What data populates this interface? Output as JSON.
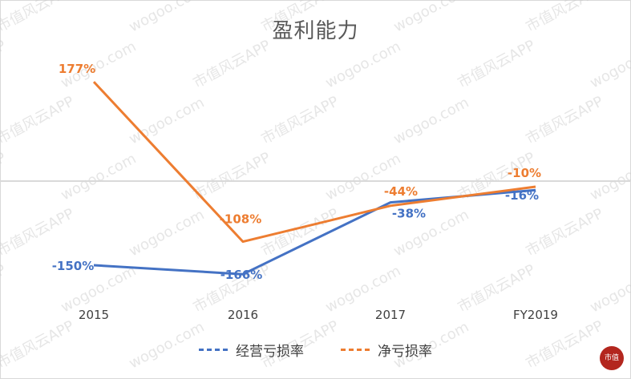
{
  "colors": {
    "operating": "#4472C4",
    "net": "#ED7D31",
    "zero_line": "#d9d9d9"
  },
  "chart_data": {
    "type": "line",
    "title": "盈利能力",
    "categories": [
      "2015",
      "2016",
      "2017",
      "FY2019"
    ],
    "series": [
      {
        "name": "经营亏损率",
        "values": [
          -150,
          -166,
          -38,
          -16
        ],
        "labels": [
          "-150%",
          "-166%",
          "-38%",
          "-16%"
        ]
      },
      {
        "name": "净亏损率",
        "values": [
          177,
          -108,
          -44,
          -10
        ],
        "labels": [
          "177%",
          "-108%",
          "-44%",
          "-10%"
        ]
      }
    ],
    "ylim": [
      -220,
      260
    ],
    "grid": false,
    "legend_position": "bottom"
  },
  "watermark": {
    "texts": [
      "市值风云APP",
      "wogoo.com"
    ],
    "seal": "市值"
  }
}
